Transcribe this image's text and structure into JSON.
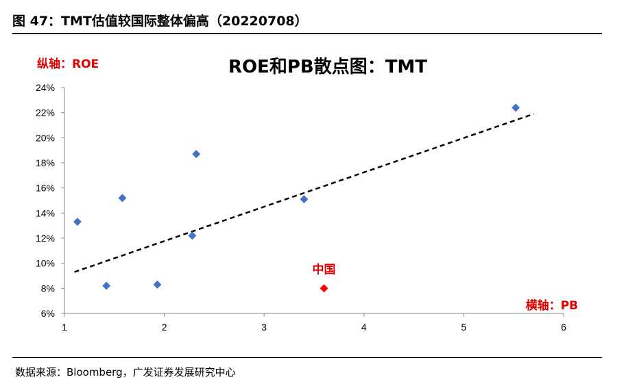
{
  "figure": {
    "title": "图 47：TMT估值较国际整体偏高（20220708）",
    "source": "数据来源：Bloomberg，广发证券发展研究中心"
  },
  "chart_data": {
    "type": "scatter",
    "title": "ROE和PB散点图：TMT",
    "ylabel": "纵轴：ROE",
    "xlabel": "横轴：PB",
    "xlim": [
      1,
      6
    ],
    "ylim": [
      6,
      24
    ],
    "x_ticks": [
      "1",
      "2",
      "3",
      "4",
      "5",
      "6"
    ],
    "y_ticks": [
      "6%",
      "8%",
      "10%",
      "12%",
      "14%",
      "16%",
      "18%",
      "20%",
      "22%",
      "24%"
    ],
    "grid": false,
    "series": [
      {
        "color": "#4472c4",
        "marker": "diamond",
        "points": [
          {
            "x": 1.13,
            "y": 13.3
          },
          {
            "x": 1.42,
            "y": 8.2
          },
          {
            "x": 1.58,
            "y": 15.2
          },
          {
            "x": 1.93,
            "y": 8.3
          },
          {
            "x": 2.28,
            "y": 12.2
          },
          {
            "x": 2.32,
            "y": 18.7
          },
          {
            "x": 3.4,
            "y": 15.1
          },
          {
            "x": 5.52,
            "y": 22.4
          }
        ]
      },
      {
        "name": "中国",
        "color": "#ff0000",
        "marker": "diamond",
        "points": [
          {
            "x": 3.6,
            "y": 8.0
          }
        ]
      }
    ],
    "trendline": {
      "style": "dashed",
      "color": "#000000",
      "from": {
        "x": 1.1,
        "y": 9.3
      },
      "to": {
        "x": 5.7,
        "y": 21.9
      }
    }
  }
}
